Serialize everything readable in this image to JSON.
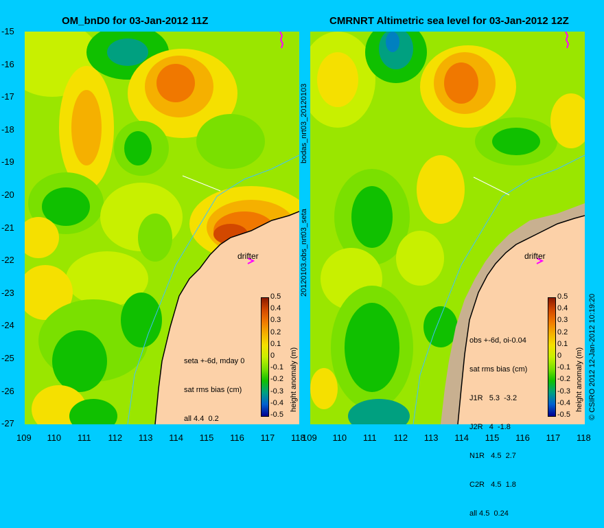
{
  "left_panel": {
    "title": "OM_bnD0 for 03-Jan-2012 11Z",
    "drifter_label": "drifter",
    "stats": [
      "seta +-6d, mday 0",
      "sat rms bias (cm)",
      "all 4.4  0.2"
    ]
  },
  "right_panel": {
    "title": "CMRNRT Altimetric sea level  for 03-Jan-2012 12Z",
    "drifter_label": "drifter",
    "stats": [
      "obs +-6d, oi-0.04",
      "sat rms bias (cm)",
      "J1R   5.3  -3.2",
      "J2R   4  -1.8",
      "N1R   4.5  2.7",
      "C2R   4.5  1.8",
      "all 4.5  0.24"
    ]
  },
  "side_label_top": "bodas_nrt03_20120103",
  "side_label_bottom": "20120103.obs_nrt03_seta",
  "colorbar": {
    "label": "height anomaly (m)",
    "ticks": [
      "0.5",
      "0.4",
      "0.3",
      "0.2",
      "0.1",
      "0",
      "-0.1",
      "-0.2",
      "-0.3",
      "-0.4",
      "-0.5"
    ],
    "colors": [
      "#8a1a00",
      "#d24800",
      "#f07800",
      "#f5b000",
      "#f5e000",
      "#c8f000",
      "#7ae000",
      "#10c000",
      "#00a080",
      "#0060d0",
      "#000090"
    ]
  },
  "copyright": "© CSIRO 2012  12-Jan-2012 10:19:20",
  "y_axis_ticks": [
    "-15",
    "-16",
    "-17",
    "-18",
    "-19",
    "-20",
    "-21",
    "-22",
    "-23",
    "-24",
    "-25",
    "-26",
    "-27"
  ],
  "x_axis_ticks": [
    "109",
    "110",
    "111",
    "112",
    "113",
    "114",
    "115",
    "116",
    "117",
    "118"
  ],
  "colors": {
    "background": "#00ccff",
    "land": "#fcd1a8",
    "ocean_base": "#9ae600",
    "drifter_marker": "#ff00ff"
  }
}
